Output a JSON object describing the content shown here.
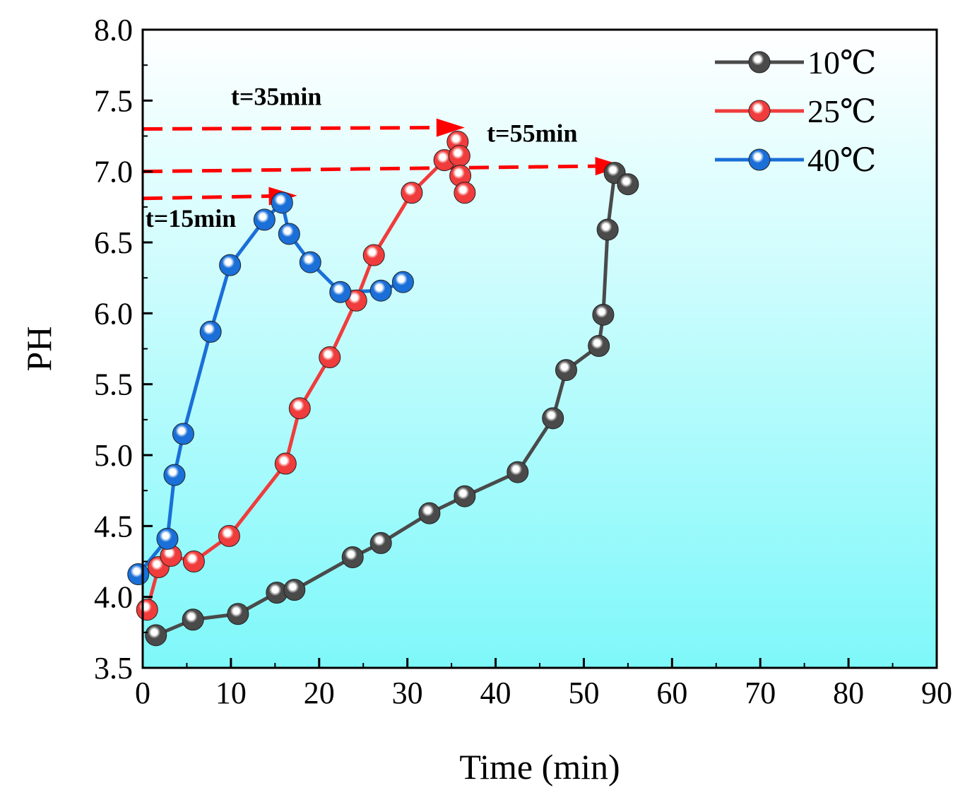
{
  "chart_data": {
    "type": "line",
    "title": "",
    "xlabel": "Time (min)",
    "ylabel": "PH",
    "xlim": [
      0,
      90
    ],
    "ylim": [
      3.5,
      8.0
    ],
    "xticks": [
      0,
      10,
      20,
      30,
      40,
      50,
      60,
      70,
      80,
      90
    ],
    "yticks": [
      3.5,
      4.0,
      4.5,
      5.0,
      5.5,
      6.0,
      6.5,
      7.0,
      7.5,
      8.0
    ],
    "xtick_labels": [
      "0",
      "10",
      "20",
      "30",
      "40",
      "50",
      "60",
      "70",
      "80",
      "90"
    ],
    "ytick_labels": [
      "3.5",
      "4.0",
      "4.5",
      "5.0",
      "5.5",
      "6.0",
      "6.5",
      "7.0",
      "7.5",
      "8.0"
    ],
    "grid": false,
    "legend_position": "top-right",
    "background": {
      "top": "#ffffff",
      "bottom": "#7ef8fa"
    },
    "series": [
      {
        "name": "10℃",
        "color": "#4a4a4a",
        "x": [
          1.5,
          5.7,
          10.8,
          15.2,
          17.2,
          23.8,
          27.0,
          32.5,
          36.5,
          42.5,
          46.5,
          48.0,
          51.7,
          52.2,
          52.7,
          53.5,
          55.0
        ],
        "y": [
          3.73,
          3.84,
          3.88,
          4.03,
          4.05,
          4.28,
          4.38,
          4.59,
          4.71,
          4.88,
          5.26,
          5.6,
          5.77,
          5.99,
          6.59,
          6.99,
          6.91
        ]
      },
      {
        "name": "25℃",
        "color": "#f03c3c",
        "x": [
          0.5,
          1.8,
          3.2,
          5.8,
          9.8,
          16.2,
          17.8,
          21.2,
          24.2,
          26.2,
          30.5,
          34.2,
          35.7,
          35.9,
          36.0,
          36.5
        ],
        "y": [
          3.91,
          4.21,
          4.29,
          4.25,
          4.43,
          4.94,
          5.33,
          5.69,
          6.09,
          6.41,
          6.85,
          7.08,
          7.21,
          7.11,
          6.97,
          6.85
        ]
      },
      {
        "name": "40℃",
        "color": "#1a6fd8",
        "x": [
          -0.5,
          2.8,
          3.6,
          4.6,
          7.7,
          9.9,
          13.8,
          15.8,
          16.6,
          19.0,
          22.4,
          27.0,
          29.5
        ],
        "y": [
          4.16,
          4.41,
          4.86,
          5.15,
          5.87,
          6.34,
          6.66,
          6.78,
          6.56,
          6.36,
          6.15,
          6.16,
          6.22
        ]
      }
    ],
    "annotations": [
      {
        "text": "t=35min",
        "x": 10,
        "y": 7.47
      },
      {
        "text": "t=55min",
        "x": 39,
        "y": 7.21
      },
      {
        "text": "t=15min",
        "x": 0.3,
        "y": 6.61
      }
    ],
    "arrows": [
      {
        "from": [
          0,
          7.3
        ],
        "to": [
          36.5,
          7.31
        ],
        "color": "#ff0000"
      },
      {
        "from": [
          0,
          7.0
        ],
        "to": [
          54.5,
          7.04
        ],
        "color": "#ff0000"
      },
      {
        "from": [
          0,
          6.81
        ],
        "to": [
          17.5,
          6.83
        ],
        "color": "#ff0000"
      }
    ]
  }
}
